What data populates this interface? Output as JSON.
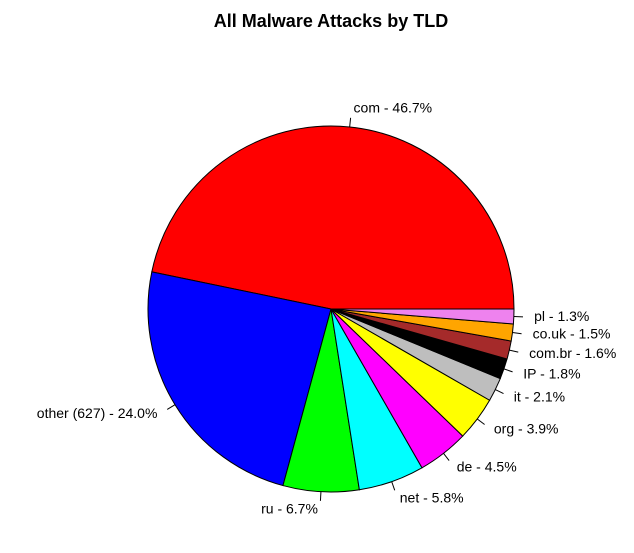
{
  "chart_data": {
    "type": "pie",
    "title": "All Malware Attacks by TLD",
    "values": [
      46.7,
      24.0,
      6.7,
      5.8,
      4.5,
      3.9,
      2.1,
      1.8,
      1.6,
      1.5,
      1.3
    ],
    "value_labels": [
      "com - 46.7%",
      "other (627) - 24.0%",
      "ru - 6.7%",
      "net - 5.8%",
      "de - 4.5%",
      "org - 3.9%",
      "it - 2.1%",
      "IP - 1.8%",
      "com.br - 1.6%",
      "co.uk - 1.5%",
      "pl - 1.3%"
    ],
    "colors": [
      "#ff0000",
      "#0000ff",
      "#00ff00",
      "#00ffff",
      "#ff00ff",
      "#ffff00",
      "#bebebe",
      "#000000",
      "#a52a2a",
      "#ffa500",
      "#ee82ee"
    ]
  }
}
